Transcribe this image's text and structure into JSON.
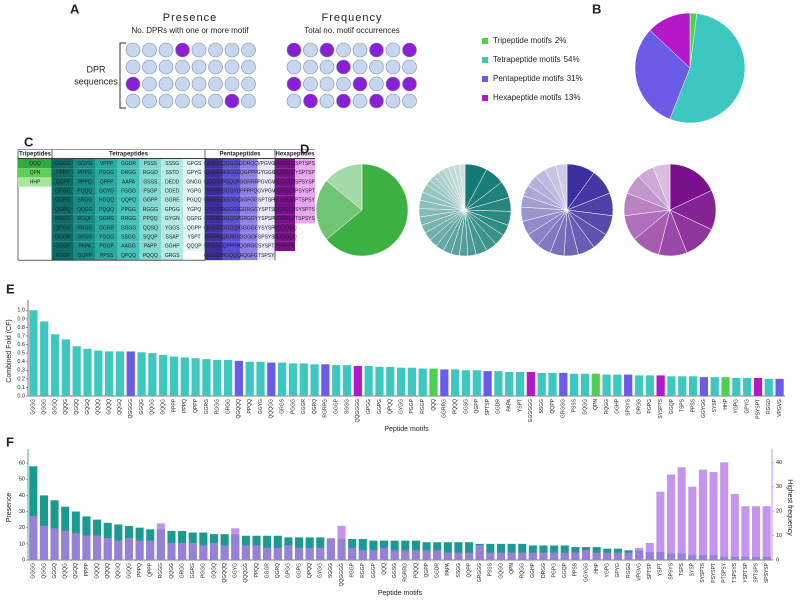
{
  "panel_labels": [
    "A",
    "B",
    "C",
    "D",
    "E",
    "F"
  ],
  "panel_a": {
    "presence_title": "Presence",
    "presence_subtitle": "No. DPRs with one or more motif",
    "frequency_title": "Frequency",
    "frequency_subtitle": "Total no. motif occurrences",
    "row_label": [
      "DPR",
      "sequences"
    ]
  },
  "table": {
    "groups": [
      {
        "header": "Tripeptides",
        "rows": [
          [
            "QQQ"
          ],
          [
            "QPN"
          ],
          [
            "HHP"
          ]
        ],
        "colors": [
          "#36a843",
          "#5fcf5a",
          "#a8e6a0"
        ]
      },
      {
        "header": "Tetrapeptides",
        "rows": [
          [
            "GGGG",
            "GGYG",
            "VPPP",
            "GGDR",
            "PSSS",
            "SSSG",
            "GPGS"
          ],
          [
            "PPPP",
            "PPPG",
            "PGGG",
            "DRGG",
            "RGGD",
            "SSTD",
            "GPYG"
          ],
          [
            "QQPP",
            "PPPQ",
            "QPPP",
            "AAPA",
            "GSSS",
            "DEDD",
            "GNGG"
          ],
          [
            "GRGG",
            "PQQQ",
            "GGYG",
            "FGGG",
            "PSGP",
            "DDED",
            "YGPG"
          ],
          [
            "GGRG",
            "SRGG",
            "HGQQ",
            "QQPQ",
            "GGPP",
            "GGRE",
            "PGQQ"
          ],
          [
            "QGRQ",
            "QQGG",
            "PQQQ",
            "PPGG",
            "RGGG",
            "GPGG",
            "YGPQ"
          ],
          [
            "RGGG",
            "RGQF",
            "GGRG",
            "RRGG",
            "PPQQ",
            "GYGN",
            "QGPG"
          ],
          [
            "QPGG",
            "RRGG",
            "GGRR",
            "GGGG",
            "QQSQ",
            "YGGS",
            "QGPP"
          ],
          [
            "GGGR",
            "GFGG",
            "YGGG",
            "SSGG",
            "SQQP",
            "SSAP",
            "YSPT"
          ],
          [
            "GGGP",
            "PAPA",
            "PGGP",
            "AAGG",
            "PAPP",
            "GGHP",
            "QQQP"
          ],
          [
            "RGGP",
            "QQPP",
            "PPSS",
            "QPQQ",
            "PQQQ",
            "GRGS"
          ]
        ],
        "colors": [
          "#0f6b66",
          "#178c84",
          "#2aa9a0",
          "#47c2b8",
          "#82d9d0",
          "#b5eae4",
          "#e4f6f4"
        ]
      },
      {
        "header": "Pentapeptides",
        "rows": [
          [
            "QGQQQ",
            "QGGSG",
            "GDRQQ",
            "VPGVG"
          ],
          [
            "RGGGG",
            "RGGGG",
            "QGPPP",
            "GYGGG"
          ],
          [
            "QQQGG",
            "PQQQP",
            "GGRRR",
            "PGVGV"
          ],
          [
            "PPPPP",
            "GGGYG",
            "PPPPQ",
            "GVPGV"
          ],
          [
            "GGRGG",
            "GGGGQ",
            "GGFGG",
            "SPTSP"
          ],
          [
            "GYGYG",
            "RGGGG",
            "GRRGG",
            "YSPTS"
          ],
          [
            "GGRRG",
            "GGQGP",
            "GRGGY",
            "YSPSP"
          ],
          [
            "QGGGG",
            "GGQQP",
            "GGGGG",
            "YSYSP"
          ],
          [
            "RGRRG",
            "QGRRG",
            "GGGGF",
            "SPSYS"
          ],
          [
            "GRGGG",
            "QPPPP",
            "QGRGG",
            "SYSPT"
          ],
          [
            "GGGGG",
            "HGQQQ",
            "RQGFG",
            "TSPSY"
          ]
        ],
        "colors": [
          "#3a2f9e",
          "#5a4fd0",
          "#8b82e6",
          "#ebe8fb"
        ]
      },
      {
        "header": "Hexapeptides",
        "rows": [
          [
            "QGGGGG",
            "SPTSPS"
          ],
          [
            "QQQGGG",
            "YSPTSP"
          ],
          [
            "GGGGGG",
            "SPSYSP"
          ],
          [
            "GGYGGG",
            "PSYSPT"
          ],
          [
            "RGGRGG",
            "PTSPSY"
          ],
          [
            "GGRGGR",
            "SYSPTS"
          ],
          [
            "GGGRGG",
            "TSPSYS"
          ],
          [
            "QQQQQQ"
          ],
          [
            "GQQQQQ"
          ],
          [
            "PPPPPP"
          ]
        ],
        "colors": [
          "#7a0f8c",
          "#eaa6f1"
        ]
      }
    ]
  },
  "chart_data": [
    {
      "type": "pie",
      "categories": [
        "Tripeptide motifs",
        "Tetrapeptide motifs",
        "Pentapeptide motifs",
        "Hexapeptide motifs"
      ],
      "values": [
        2,
        54,
        31,
        13
      ],
      "value_labels": [
        "2%",
        "54%",
        "31%",
        "13%"
      ],
      "colors": [
        "#4fd04f",
        "#3cc8c0",
        "#6b5ce8",
        "#b517c9"
      ]
    },
    {
      "type": "pie",
      "values": [
        64,
        22,
        14
      ],
      "color": "#3cb043"
    },
    {
      "type": "pie",
      "values": [
        8,
        7,
        6,
        5,
        5,
        4,
        4,
        4,
        4,
        3,
        3,
        3,
        3,
        3,
        3,
        3,
        3,
        3,
        3,
        3,
        3,
        3,
        2,
        2,
        2,
        2,
        2,
        2,
        2,
        2
      ],
      "color": "#137a73"
    },
    {
      "type": "pie",
      "values": [
        10,
        9,
        8,
        7,
        6,
        6,
        5,
        5,
        5,
        5,
        5,
        5,
        4,
        4,
        4,
        4,
        4,
        4
      ],
      "color": "#3a2f9e"
    },
    {
      "type": "pie",
      "values": [
        18,
        14,
        12,
        10,
        10,
        9,
        8,
        7,
        6,
        6
      ],
      "color": "#7a0f8c"
    },
    {
      "type": "bar",
      "categories": [
        "GGGG",
        "QGGG",
        "GGGQ",
        "QQQG",
        "QGQQ",
        "GQGQ",
        "QQQQ",
        "GQQQ",
        "QQGQ",
        "QGGGG",
        "GGQG",
        "QQGG",
        "GQQG",
        "PPPP",
        "PPPQ",
        "QPPP",
        "GGRG",
        "RGGG",
        "GRGG",
        "QGQQQ",
        "PPQQ",
        "GGYG",
        "QQQGG",
        "GRGS",
        "PGGG",
        "GGGR",
        "QGRQ",
        "RGRRG",
        "GGGP",
        "SGGG",
        "QQGGGG",
        "GPGG",
        "GGPG",
        "QPQQ",
        "GYGG",
        "PGGP",
        "RGGP",
        "QQQ",
        "GGRRG",
        "PQQQ",
        "GGSG",
        "QGPP",
        "SPTSP",
        "GGDR",
        "PAPA",
        "YSPT",
        "GGGGGG",
        "SSGG",
        "QQPP",
        "GRGGG",
        "PSSS",
        "GQGG",
        "QPN",
        "RQGG",
        "GGHP",
        "SPSYS",
        "DRGG",
        "PGPG",
        "SYSPTS",
        "GGQP",
        "TSPS",
        "PPSS",
        "GGYGG",
        "SYSP",
        "HHP",
        "YGPG",
        "GPYG",
        "PSYSPT",
        "RGGD",
        "VPGVG"
      ],
      "values": [
        1.0,
        0.87,
        0.72,
        0.66,
        0.58,
        0.55,
        0.53,
        0.52,
        0.52,
        0.52,
        0.51,
        0.5,
        0.48,
        0.46,
        0.45,
        0.44,
        0.43,
        0.42,
        0.42,
        0.41,
        0.4,
        0.4,
        0.39,
        0.39,
        0.38,
        0.38,
        0.37,
        0.37,
        0.36,
        0.36,
        0.35,
        0.35,
        0.34,
        0.34,
        0.33,
        0.33,
        0.32,
        0.32,
        0.31,
        0.31,
        0.3,
        0.3,
        0.29,
        0.29,
        0.28,
        0.28,
        0.28,
        0.27,
        0.27,
        0.27,
        0.26,
        0.26,
        0.26,
        0.25,
        0.25,
        0.25,
        0.24,
        0.24,
        0.24,
        0.23,
        0.23,
        0.23,
        0.22,
        0.22,
        0.22,
        0.21,
        0.21,
        0.21,
        0.2,
        0.2
      ],
      "ylim": [
        0,
        1.05
      ],
      "yticks": [
        {
          "value": 0,
          "label": "0.0"
        },
        0.1,
        0.2,
        0.3,
        0.4,
        0.5,
        0.6,
        0.7,
        0.8,
        0.9,
        {
          "value": 1,
          "label": "1.0"
        }
      ],
      "ylabel": "Combined Fold (CF)",
      "xlabel": "Peptide motifs"
    },
    {
      "type": "bar",
      "categories": [
        "GGGG",
        "QGGG",
        "GGGQ",
        "QQQG",
        "QGQQ",
        "PPPP",
        "GQQQ",
        "QQQQ",
        "QQGQ",
        "GGQG",
        "PPPQ",
        "QPPP",
        "RGGG",
        "QQGG",
        "GRGG",
        "GGRG",
        "PGGG",
        "GQGQ",
        "QGQQQ",
        "GGYG",
        "QQQGG",
        "PPQQ",
        "GGGR",
        "QGRQ",
        "GPGG",
        "GGPG",
        "QPQQ",
        "GYGG",
        "SGGG",
        "QQGGGG",
        "PGGP",
        "RGGP",
        "GGGP",
        "QQQ",
        "GGSG",
        "RGRRG",
        "PQQQ",
        "QGPP",
        "GGDR",
        "PAPA",
        "SSGG",
        "QQPP",
        "GRGGG",
        "PSSS",
        "GQGG",
        "QPN",
        "RQGG",
        "GGHP",
        "DRGG",
        "PGPG",
        "GGQP",
        "PPSS",
        "GGYGG",
        "HHP",
        "YGPG",
        "GPYG",
        "RGGD",
        "VPGVG",
        "SPTSP",
        "YSPT",
        "SPSYS",
        "TSPS",
        "SYSP",
        "SYSPTS",
        "PSYSPT",
        "PTSPSY",
        "TSPSYS",
        "YSPTSP",
        "SPTSPS",
        "SPSYSP"
      ],
      "series": [
        {
          "name": "Presence",
          "color": "#1b9a8f",
          "values": [
            58,
            40,
            37,
            33,
            30,
            27,
            25,
            23,
            22,
            21,
            20,
            19,
            19,
            18,
            18,
            17,
            17,
            16,
            16,
            16,
            15,
            15,
            15,
            15,
            14,
            14,
            14,
            14,
            13,
            13,
            13,
            13,
            12,
            12,
            12,
            12,
            12,
            11,
            11,
            11,
            11,
            11,
            10,
            10,
            10,
            10,
            10,
            9,
            9,
            9,
            9,
            8,
            8,
            8,
            7,
            7,
            6,
            6,
            5,
            5,
            4,
            4,
            3,
            3,
            3,
            2,
            2,
            2,
            2,
            2
          ]
        },
        {
          "name": "Highest frequency",
          "color": "#b57be8",
          "axis": "y2",
          "values": [
            18,
            14,
            13,
            12,
            11,
            10,
            10,
            9,
            8,
            9,
            8,
            8,
            15,
            7,
            7,
            7,
            6,
            7,
            6,
            13,
            6,
            6,
            5,
            5,
            6,
            5,
            5,
            5,
            9,
            14,
            5,
            4,
            4,
            5,
            4,
            4,
            4,
            4,
            4,
            3,
            3,
            3,
            6,
            3,
            3,
            3,
            3,
            3,
            3,
            3,
            3,
            3,
            4,
            3,
            3,
            3,
            3,
            5,
            7,
            28,
            35,
            38,
            30,
            37,
            36,
            40,
            27,
            22,
            22,
            22
          ]
        }
      ],
      "ylim": [
        0,
        65
      ],
      "yticks": [
        0,
        10,
        20,
        30,
        40,
        50,
        60
      ],
      "y2lim": [
        0,
        43
      ],
      "y2ticks": [
        0,
        10,
        20,
        30,
        40
      ],
      "xlabel": "Peptide motifs"
    }
  ]
}
